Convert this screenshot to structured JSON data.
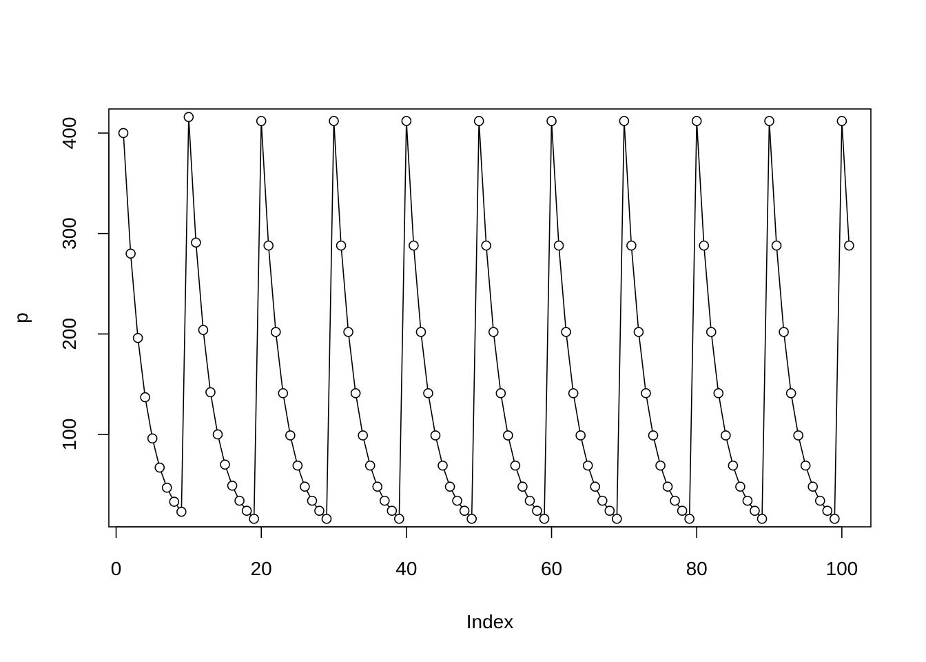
{
  "chart_data": {
    "type": "line",
    "title": "",
    "xlabel": "Index",
    "ylabel": "p",
    "xlim": [
      -1,
      104
    ],
    "ylim": [
      8,
      424
    ],
    "x_ticks": [
      0,
      20,
      40,
      60,
      80,
      100
    ],
    "x_tick_labels": [
      "0",
      "20",
      "40",
      "60",
      "80",
      "100"
    ],
    "y_ticks": [
      100,
      200,
      300,
      400
    ],
    "y_tick_labels": [
      "100",
      "200",
      "300",
      "400"
    ],
    "grid": false,
    "markers": "open-circle",
    "colors": {
      "line": "#000000",
      "marker": "#000000"
    },
    "series": [
      {
        "x": [
          1,
          2,
          3,
          4,
          5,
          6,
          7,
          8,
          9,
          10,
          11,
          12,
          13,
          14,
          15,
          16,
          17,
          18,
          19,
          20,
          21,
          22,
          23,
          24,
          25,
          26,
          27,
          28,
          29,
          30,
          31,
          32,
          33,
          34,
          35,
          36,
          37,
          38,
          39,
          40,
          41,
          42,
          43,
          44,
          45,
          46,
          47,
          48,
          49,
          50,
          51,
          52,
          53,
          54,
          55,
          56,
          57,
          58,
          59,
          60,
          61,
          62,
          63,
          64,
          65,
          66,
          67,
          68,
          69,
          70,
          71,
          72,
          73,
          74,
          75,
          76,
          77,
          78,
          79,
          80,
          81,
          82,
          83,
          84,
          85,
          86,
          87,
          88,
          89,
          90,
          91,
          92,
          93,
          94,
          95,
          96,
          97,
          98,
          99,
          100,
          101
        ],
        "values": [
          400,
          280,
          196,
          137,
          96,
          67,
          47,
          33,
          23,
          416,
          291,
          204,
          142,
          100,
          70,
          49,
          34,
          24,
          16,
          412,
          288,
          202,
          141,
          99,
          69,
          48,
          34,
          24,
          16,
          412,
          288,
          202,
          141,
          99,
          69,
          48,
          34,
          24,
          16,
          412,
          288,
          202,
          141,
          99,
          69,
          48,
          34,
          24,
          16,
          412,
          288,
          202,
          141,
          99,
          69,
          48,
          34,
          24,
          16,
          412,
          288,
          202,
          141,
          99,
          69,
          48,
          34,
          24,
          16,
          412,
          288,
          202,
          141,
          99,
          69,
          48,
          34,
          24,
          16,
          412,
          288,
          202,
          141,
          99,
          69,
          48,
          34,
          24,
          16,
          412,
          288,
          202,
          141,
          99,
          69,
          48,
          34,
          24,
          16,
          412,
          288
        ]
      }
    ]
  }
}
